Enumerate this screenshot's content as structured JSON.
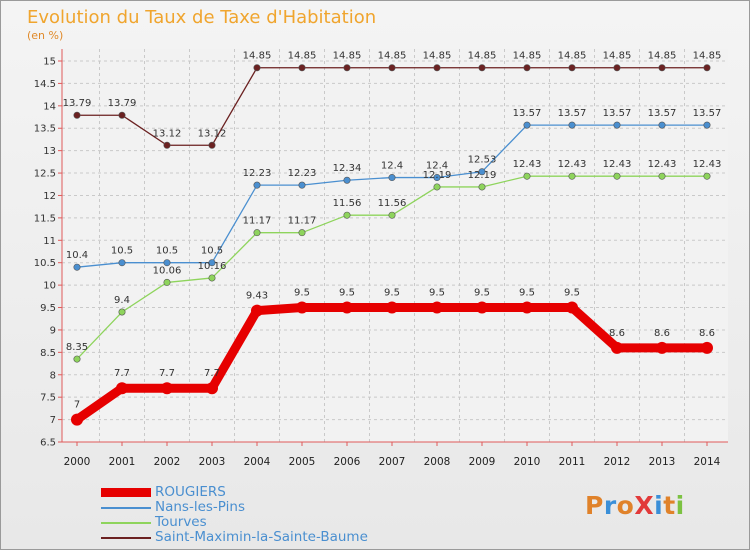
{
  "header": {
    "title": "Evolution du Taux de Taxe d'Habitation",
    "subtitle": "(en %)"
  },
  "logo": {
    "text": "ProXiti",
    "colors": [
      "#e0822a",
      "#3a8fd8",
      "#e0822a",
      "#e23a3a",
      "#3a8fd8",
      "#e0822a",
      "#7cc242"
    ]
  },
  "chart_data": {
    "type": "line",
    "x": [
      "2000",
      "2001",
      "2002",
      "2003",
      "2004",
      "2005",
      "2006",
      "2007",
      "2008",
      "2009",
      "2010",
      "2011",
      "2012",
      "2013",
      "2014"
    ],
    "ylim": [
      6.5,
      15
    ],
    "yticks": [
      "6.5",
      "7",
      "7.5",
      "8",
      "8.5",
      "9",
      "9.5",
      "10",
      "10.5",
      "11",
      "11.5",
      "12",
      "12.5",
      "13",
      "13.5",
      "14",
      "14.5",
      "15"
    ],
    "grid": true,
    "legend_position": "bottom-left",
    "series": [
      {
        "name": "Saint-Maximin-la-Sainte-Baume",
        "color": "#6b2121",
        "values": [
          13.79,
          13.79,
          13.12,
          13.12,
          14.85,
          14.85,
          14.85,
          14.85,
          14.85,
          14.85,
          14.85,
          14.85,
          14.85,
          14.85,
          14.85
        ],
        "labels": [
          "13.79",
          "13.79",
          "13.12",
          "13.12",
          "14.85",
          "14.85",
          "14.85",
          "14.85",
          "14.85",
          "14.85",
          "14.85",
          "14.85",
          "14.85",
          "14.85",
          "14.85"
        ]
      },
      {
        "name": "Nans-les-Pins",
        "color": "#4a8fd0",
        "values": [
          10.4,
          10.5,
          10.5,
          10.5,
          12.23,
          12.23,
          12.34,
          12.4,
          12.4,
          12.53,
          13.57,
          13.57,
          13.57,
          13.57,
          13.57
        ],
        "labels": [
          "10.4",
          "10.5",
          "10.5",
          "10.5",
          "12.23",
          "12.23",
          "12.34",
          "12.4",
          "12.4",
          "12.53",
          "13.57",
          "13.57",
          "13.57",
          "13.57",
          "13.57"
        ]
      },
      {
        "name": "Tourves",
        "color": "#8ed45c",
        "values": [
          8.35,
          9.4,
          10.06,
          10.16,
          11.17,
          11.17,
          11.56,
          11.56,
          12.19,
          12.19,
          12.43,
          12.43,
          12.43,
          12.43,
          12.43
        ],
        "labels": [
          "8.35",
          "9.4",
          "10.06",
          "10.16",
          "11.17",
          "11.17",
          "11.56",
          "11.56",
          "12.19",
          "12.19",
          "12.43",
          "12.43",
          "12.43",
          "12.43",
          "12.43"
        ]
      },
      {
        "name": "ROUGIERS",
        "color": "#e60000",
        "values": [
          7,
          7.7,
          7.7,
          7.7,
          9.43,
          9.5,
          9.5,
          9.5,
          9.5,
          9.5,
          9.5,
          9.5,
          8.6,
          8.6,
          8.6
        ],
        "labels": [
          "7",
          "7.7",
          "7.7",
          "7.7",
          "9.43",
          "9.5",
          "9.5",
          "9.5",
          "9.5",
          "9.5",
          "9.5",
          "9.5",
          "8.6",
          "8.6",
          "8.6"
        ]
      }
    ],
    "legend": [
      "ROUGIERS",
      "Nans-les-Pins",
      "Tourves",
      "Saint-Maximin-la-Sainte-Baume"
    ]
  }
}
